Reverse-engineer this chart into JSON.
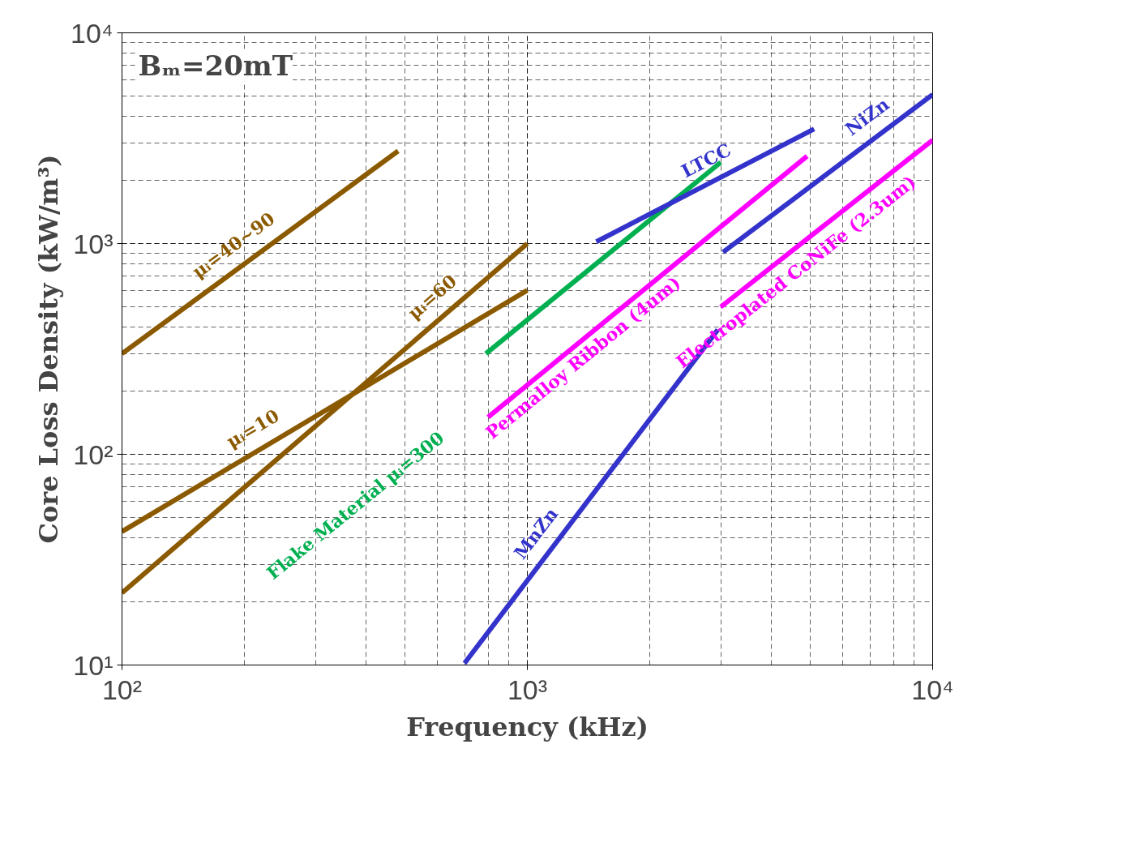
{
  "chart_data": {
    "type": "line",
    "xlabel": "Frequency (kHz)",
    "ylabel": "Core Loss Density (kW/m³)",
    "annotations": [
      "Bₘ=20mT"
    ],
    "log": "xy",
    "grid": true,
    "line_style": "solid",
    "marker": "none",
    "xlim": [
      100,
      10000
    ],
    "ylim": [
      10,
      10000
    ],
    "xticks": [
      {
        "value": 100,
        "label": "10²"
      },
      {
        "value": 1000,
        "label": "10³"
      },
      {
        "value": 10000,
        "label": "10⁴"
      }
    ],
    "yticks": [
      {
        "value": 10,
        "label": "10¹"
      },
      {
        "value": 100,
        "label": "10²"
      },
      {
        "value": 1000,
        "label": "10³"
      },
      {
        "value": 10000,
        "label": "10⁴"
      }
    ],
    "series": [
      {
        "name": "μᵢ=40~90",
        "color": "#8b5a00",
        "x": [
          100,
          480
        ],
        "values": [
          300,
          2750
        ]
      },
      {
        "name": "μᵢ=60",
        "color": "#8b5a00",
        "x": [
          100,
          1000
        ],
        "values": [
          22,
          1000
        ]
      },
      {
        "name": "μᵢ=10",
        "color": "#8b5a00",
        "x": [
          100,
          1000
        ],
        "values": [
          43,
          600
        ]
      },
      {
        "name": "Flake Material μᵢ=300",
        "color": "#00b050",
        "x": [
          790,
          3000
        ],
        "values": [
          300,
          2430
        ]
      },
      {
        "name": "Permalloy Ribbon (4um)",
        "color": "#ff00ff",
        "x": [
          800,
          4900
        ],
        "values": [
          150,
          2600
        ]
      },
      {
        "name": "Electroplated CoNiFe (2.3um)",
        "color": "#ff00ff",
        "x": [
          3000,
          10000
        ],
        "values": [
          500,
          3100
        ]
      },
      {
        "name": "LTCC",
        "color": "#3333cc",
        "x": [
          1480,
          5100
        ],
        "values": [
          1020,
          3500
        ]
      },
      {
        "name": "NiZn",
        "color": "#3333cc",
        "x": [
          3040,
          10000
        ],
        "values": [
          910,
          5100
        ]
      },
      {
        "name": "MnZn",
        "color": "#3333cc",
        "x": [
          700,
          2950
        ],
        "values": [
          10.2,
          390
        ]
      }
    ]
  }
}
